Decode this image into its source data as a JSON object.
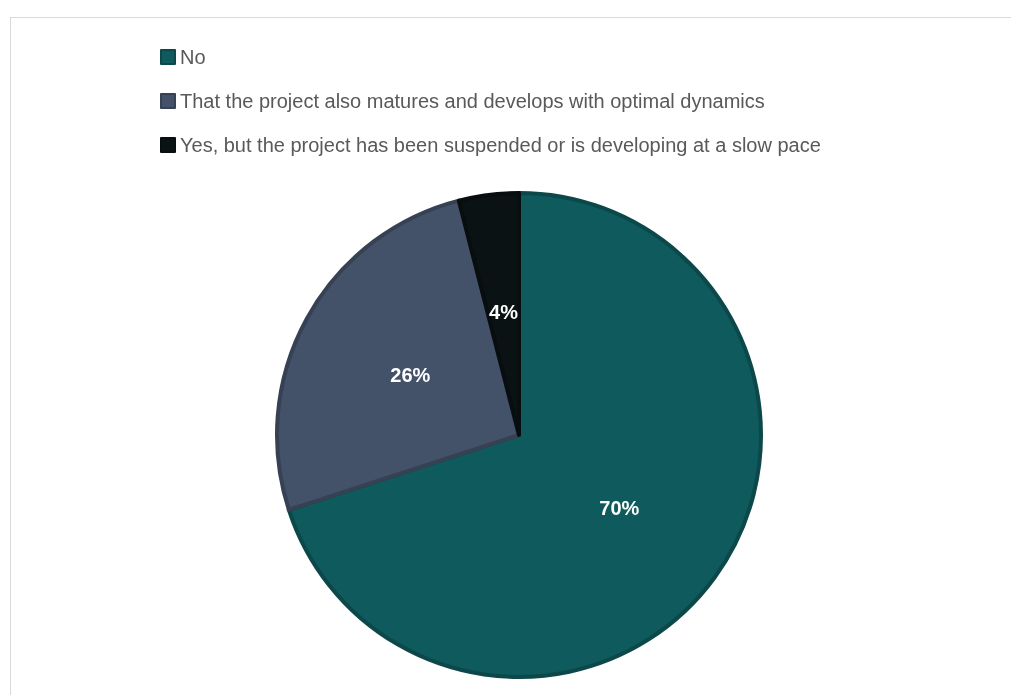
{
  "chart_data": {
    "type": "pie",
    "categories": [
      "No",
      "That the project also matures and develops with optimal dynamics",
      "Yes, but the project has been suspended or is developing at a slow pace"
    ],
    "values": [
      70,
      26,
      4
    ],
    "colors": [
      "#0f5a5c",
      "#435169",
      "#0a1214"
    ],
    "value_labels": [
      "70%",
      "26%",
      "4%"
    ],
    "legend": "top left"
  }
}
